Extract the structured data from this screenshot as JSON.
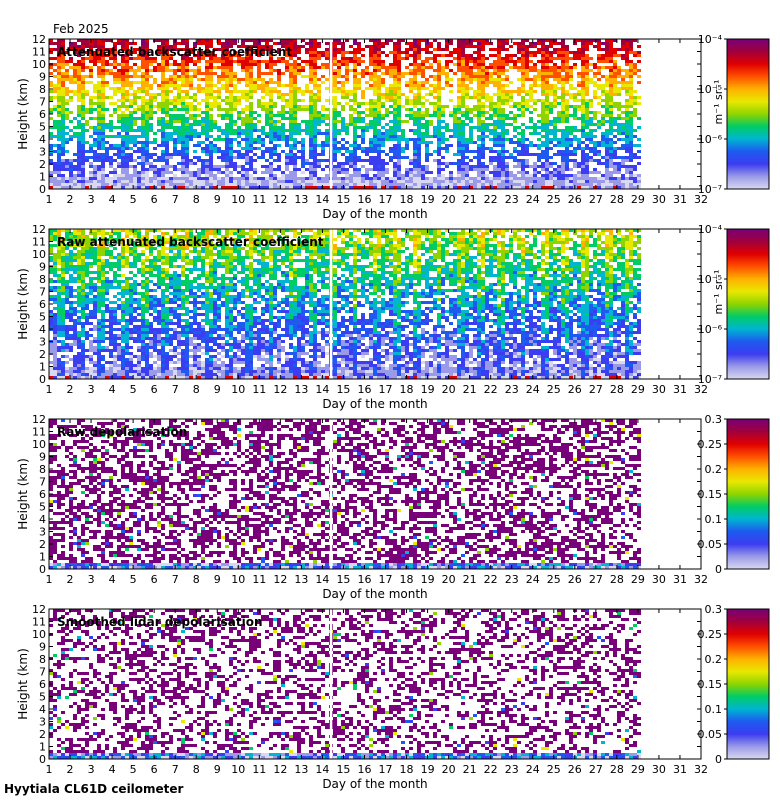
{
  "header": {
    "date": "Feb 2025"
  },
  "footer": {
    "site": "Hyytiala CL61D ceilometer"
  },
  "colors": {
    "frame": "#000000",
    "missing": "#ffffff",
    "low": "#c8c8ee",
    "palette": [
      "#d8d8f0",
      "#9a9ae8",
      "#3c3cf0",
      "#1e5af0",
      "#00b4d2",
      "#00cc66",
      "#8fd400",
      "#e8e800",
      "#ffb000",
      "#ff5000",
      "#e00000",
      "#a0003c",
      "#780078"
    ]
  },
  "chart_data": [
    {
      "type": "heatmap",
      "title": "Attenuated backscatter coefficient",
      "xlabel": "Day of the month",
      "ylabel": "Height (km)",
      "xlim": [
        1,
        32
      ],
      "ylim": [
        0,
        12
      ],
      "xticks": [
        "1",
        "2",
        "3",
        "4",
        "5",
        "6",
        "7",
        "8",
        "9",
        "10",
        "11",
        "12",
        "13",
        "14",
        "15",
        "16",
        "17",
        "18",
        "19",
        "20",
        "21",
        "22",
        "23",
        "24",
        "25",
        "26",
        "27",
        "28",
        "29",
        "30",
        "31",
        "32"
      ],
      "yticks": [
        "0",
        "1",
        "2",
        "3",
        "4",
        "5",
        "6",
        "7",
        "8",
        "9",
        "10",
        "11",
        "12"
      ],
      "data_extent_days": [
        1,
        29
      ],
      "data_gap_day": 14.4,
      "colorbar": {
        "scale": "log",
        "unit_label": "m⁻¹ sr⁻¹",
        "ticks": [
          "10⁻⁷",
          "10⁻⁶",
          "10⁻⁵",
          "10⁻⁴"
        ]
      }
    },
    {
      "type": "heatmap",
      "title": "Raw attenuated backscatter coefficient",
      "xlabel": "Day of the month",
      "ylabel": "Height (km)",
      "xlim": [
        1,
        32
      ],
      "ylim": [
        0,
        12
      ],
      "xticks": [
        "1",
        "2",
        "3",
        "4",
        "5",
        "6",
        "7",
        "8",
        "9",
        "10",
        "11",
        "12",
        "13",
        "14",
        "15",
        "16",
        "17",
        "18",
        "19",
        "20",
        "21",
        "22",
        "23",
        "24",
        "25",
        "26",
        "27",
        "28",
        "29",
        "30",
        "31",
        "32"
      ],
      "yticks": [
        "0",
        "1",
        "2",
        "3",
        "4",
        "5",
        "6",
        "7",
        "8",
        "9",
        "10",
        "11",
        "12"
      ],
      "data_extent_days": [
        1,
        29
      ],
      "data_gap_day": 14.4,
      "colorbar": {
        "scale": "log",
        "unit_label": "m⁻¹ sr⁻¹",
        "ticks": [
          "10⁻⁷",
          "10⁻⁶",
          "10⁻⁵",
          "10⁻⁴"
        ]
      }
    },
    {
      "type": "heatmap",
      "title": "Raw depolarisation",
      "xlabel": "Day of the month",
      "ylabel": "Height (km)",
      "xlim": [
        1,
        32
      ],
      "ylim": [
        0,
        12
      ],
      "xticks": [
        "1",
        "2",
        "3",
        "4",
        "5",
        "6",
        "7",
        "8",
        "9",
        "10",
        "11",
        "12",
        "13",
        "14",
        "15",
        "16",
        "17",
        "18",
        "19",
        "20",
        "21",
        "22",
        "23",
        "24",
        "25",
        "26",
        "27",
        "28",
        "29",
        "30",
        "31",
        "32"
      ],
      "yticks": [
        "0",
        "1",
        "2",
        "3",
        "4",
        "5",
        "6",
        "7",
        "8",
        "9",
        "10",
        "11",
        "12"
      ],
      "data_extent_days": [
        1,
        29
      ],
      "data_gap_day": 14.4,
      "colorbar": {
        "scale": "linear",
        "unit_label": "",
        "ticks": [
          "0",
          "0.05",
          "0.1",
          "0.15",
          "0.2",
          "0.25",
          "0.3"
        ]
      }
    },
    {
      "type": "heatmap",
      "title": "Smoothed lidar depolarisation",
      "xlabel": "Day of the month",
      "ylabel": "Height (km)",
      "xlim": [
        1,
        32
      ],
      "ylim": [
        0,
        12
      ],
      "xticks": [
        "1",
        "2",
        "3",
        "4",
        "5",
        "6",
        "7",
        "8",
        "9",
        "10",
        "11",
        "12",
        "13",
        "14",
        "15",
        "16",
        "17",
        "18",
        "19",
        "20",
        "21",
        "22",
        "23",
        "24",
        "25",
        "26",
        "27",
        "28",
        "29",
        "30",
        "31",
        "32"
      ],
      "yticks": [
        "0",
        "1",
        "2",
        "3",
        "4",
        "5",
        "6",
        "7",
        "8",
        "9",
        "10",
        "11",
        "12"
      ],
      "data_extent_days": [
        1,
        29
      ],
      "data_gap_day": 14.4,
      "colorbar": {
        "scale": "linear",
        "unit_label": "",
        "ticks": [
          "0",
          "0.05",
          "0.1",
          "0.15",
          "0.2",
          "0.25",
          "0.3"
        ]
      }
    }
  ]
}
